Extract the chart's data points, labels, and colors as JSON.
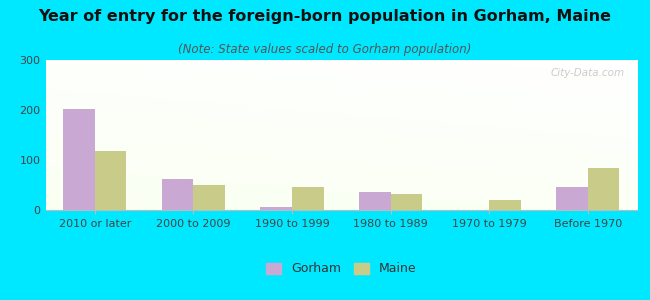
{
  "title": "Year of entry for the foreign-born population in Gorham, Maine",
  "subtitle": "(Note: State values scaled to Gorham population)",
  "categories": [
    "2010 or later",
    "2000 to 2009",
    "1990 to 1999",
    "1980 to 1989",
    "1970 to 1979",
    "Before 1970"
  ],
  "gorham_values": [
    203,
    62,
    7,
    36,
    0,
    46
  ],
  "maine_values": [
    118,
    50,
    47,
    33,
    20,
    85
  ],
  "gorham_color": "#c9a8d4",
  "maine_color": "#c8cc88",
  "ylim": [
    0,
    300
  ],
  "yticks": [
    0,
    100,
    200,
    300
  ],
  "bg_outer": "#00e8ff",
  "bar_width": 0.32,
  "title_fontsize": 11.5,
  "subtitle_fontsize": 8.5,
  "legend_fontsize": 9,
  "tick_fontsize": 8,
  "watermark_text": "City-Data.com"
}
